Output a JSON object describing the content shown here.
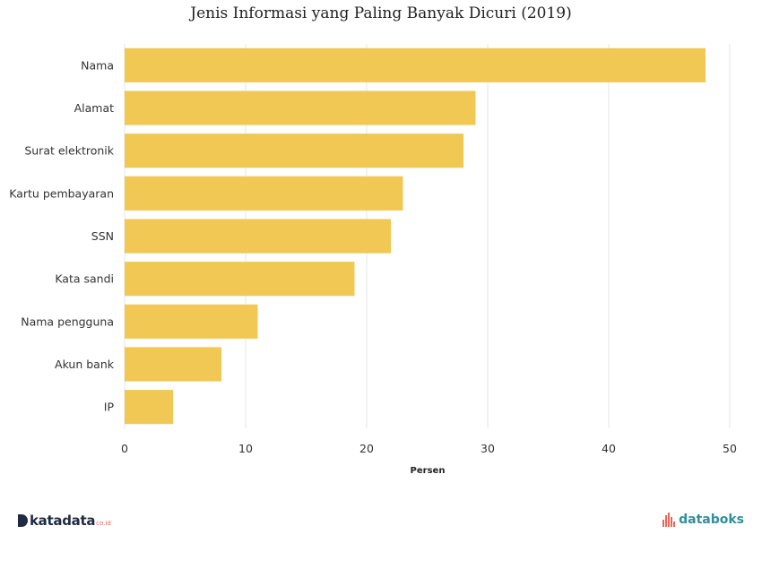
{
  "chart_data": {
    "type": "bar",
    "orientation": "horizontal",
    "title": "Jenis Informasi yang Paling Banyak Dicuri (2019)",
    "xlabel": "Persen",
    "ylabel": "",
    "categories": [
      "Nama",
      "Alamat",
      "Surat elektronik",
      "Kartu pembayaran",
      "SSN",
      "Kata sandi",
      "Nama pengguna",
      "Akun bank",
      "IP"
    ],
    "values": [
      48,
      29,
      28,
      23,
      22,
      19,
      11,
      8,
      4
    ],
    "xlim": [
      0,
      50
    ],
    "xticks": [
      0,
      10,
      20,
      30,
      40,
      50
    ],
    "grid": true,
    "bar_color": "#f0c853"
  },
  "branding": {
    "left_logo": "katadata",
    "left_logo_suffix": "co.id",
    "right_logo": "databoks"
  }
}
